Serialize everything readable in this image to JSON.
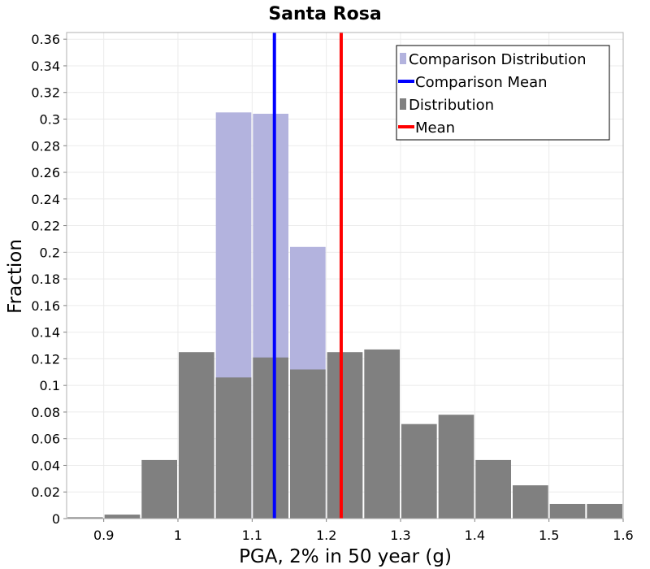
{
  "chart_data": {
    "type": "bar",
    "title": "Santa Rosa",
    "xlabel": "PGA, 2% in 50 year (g)",
    "ylabel": "Fraction",
    "xlim": [
      0.85,
      1.6
    ],
    "ylim": [
      0,
      0.365
    ],
    "bin_width": 0.05,
    "xticks": [
      0.9,
      1.0,
      1.1,
      1.2,
      1.3,
      1.4,
      1.5,
      1.6
    ],
    "xtick_labels": [
      "0.9",
      "1",
      "1.1",
      "1.2",
      "1.3",
      "1.4",
      "1.5",
      "1.6"
    ],
    "yticks": [
      0,
      0.02,
      0.04,
      0.06,
      0.08,
      0.1,
      0.12,
      0.14,
      0.16,
      0.18,
      0.2,
      0.22,
      0.24,
      0.26,
      0.28,
      0.3,
      0.32,
      0.34,
      0.36
    ],
    "ytick_labels": [
      "0",
      "0.02",
      "0.04",
      "0.06",
      "0.08",
      "0.1",
      "0.12",
      "0.14",
      "0.16",
      "0.18",
      "0.2",
      "0.22",
      "0.24",
      "0.26",
      "0.28",
      "0.3",
      "0.32",
      "0.34",
      "0.36"
    ],
    "grid": true,
    "legend_position": "top-right",
    "series": [
      {
        "name": "Comparison Distribution",
        "kind": "histogram",
        "color": "#b3b3de",
        "bin_starts": [
          1.05,
          1.1,
          1.15
        ],
        "values": [
          0.305,
          0.304,
          0.204
        ]
      },
      {
        "name": "Distribution",
        "kind": "histogram",
        "color": "#808080",
        "bin_starts": [
          0.85,
          0.9,
          0.95,
          1.0,
          1.05,
          1.1,
          1.15,
          1.2,
          1.25,
          1.3,
          1.35,
          1.4,
          1.45,
          1.5,
          1.55
        ],
        "values": [
          0.001,
          0.003,
          0.044,
          0.125,
          0.106,
          0.121,
          0.112,
          0.125,
          0.127,
          0.071,
          0.078,
          0.044,
          0.025,
          0.011,
          0.011
        ]
      },
      {
        "name": "Comparison Mean",
        "kind": "vline",
        "color": "#0000ff",
        "x": 1.13
      },
      {
        "name": "Mean",
        "kind": "vline",
        "color": "#ff0000",
        "x": 1.22
      }
    ],
    "legend": [
      {
        "label": "Comparison Distribution",
        "color": "#b3b3de",
        "marker": "square"
      },
      {
        "label": "Comparison Mean",
        "color": "#0000ff",
        "marker": "line"
      },
      {
        "label": "Distribution",
        "color": "#808080",
        "marker": "square"
      },
      {
        "label": "Mean",
        "color": "#ff0000",
        "marker": "line"
      }
    ]
  }
}
